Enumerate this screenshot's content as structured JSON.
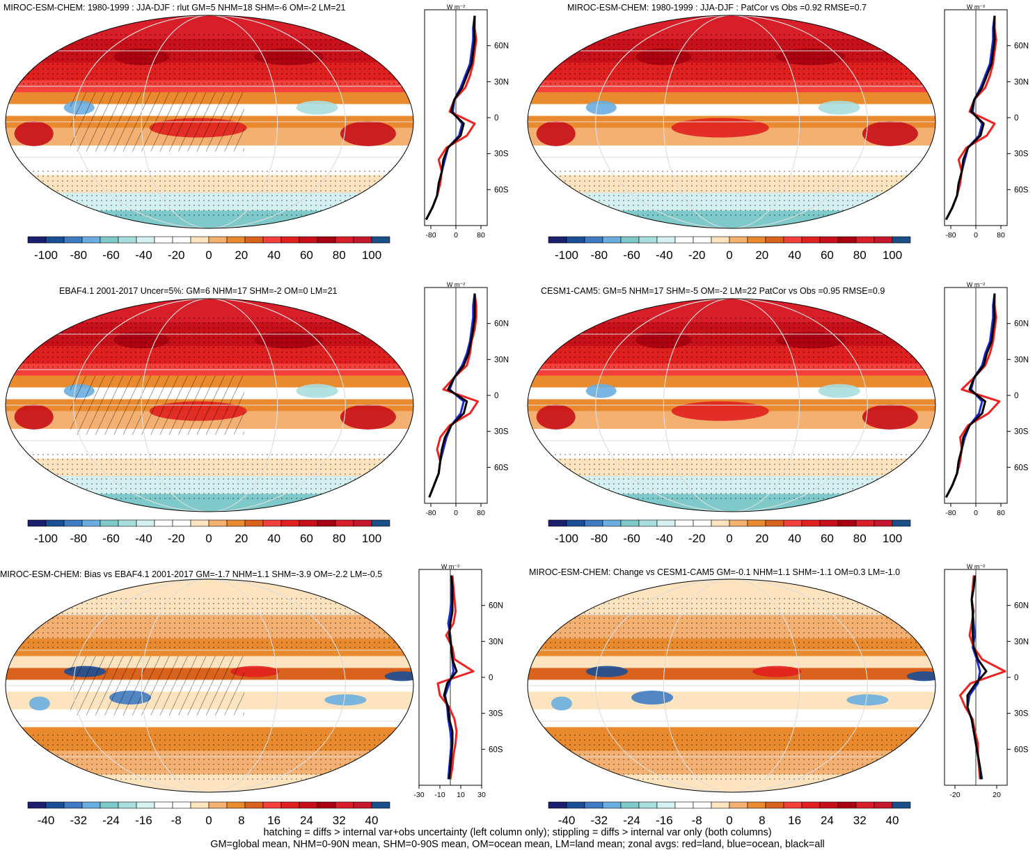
{
  "colors": {
    "rlut_scale": [
      "#1b1f6e",
      "#1c4e96",
      "#3f7cc4",
      "#6aaee0",
      "#7ec9c9",
      "#a9dede",
      "#d4f0f0",
      "#ffffff",
      "#ffffff",
      "#fde4bf",
      "#f4b070",
      "#ea8a2e",
      "#d9621c",
      "#f4403a",
      "#e0201e",
      "#c8101a",
      "#a80010",
      "#d81e28",
      "#c6182a",
      "#1a4f8a"
    ],
    "diff_scale": [
      "#1b1f6e",
      "#1c4e96",
      "#3f7cc4",
      "#6aaee0",
      "#7ec9c9",
      "#a9dede",
      "#d4f0f0",
      "#ffffff",
      "#ffffff",
      "#fde4bf",
      "#f4b070",
      "#ea8a2e",
      "#d9621c",
      "#f4403a",
      "#e0201e",
      "#c8101a",
      "#a80010",
      "#d81e28",
      "#c6182a",
      "#1a4f8a"
    ],
    "land": "#ee2222",
    "ocean": "#1a2bd6",
    "all": "#000000"
  },
  "panels": [
    {
      "id": "p1",
      "title": "MIROC-ESM-CHEM: 1980-1999 : JJA-DJF : rlut GM=5 NHM=18 SHM=-6 OM=-2 LM=21",
      "kind": "mean",
      "colorbar": [
        "-100",
        "-80",
        "-60",
        "-40",
        "-20",
        "0",
        "20",
        "40",
        "60",
        "80",
        "100"
      ],
      "zonal_xticks": [
        "-80",
        "0",
        "80"
      ],
      "hatched": true
    },
    {
      "id": "p2",
      "title": "MIROC-ESM-CHEM: 1980-1999 : JJA-DJF : PatCor vs Obs =0.92 RMSE=0.7",
      "kind": "mean",
      "colorbar": [
        "-100",
        "-80",
        "-60",
        "-40",
        "-20",
        "0",
        "20",
        "40",
        "60",
        "80",
        "100"
      ],
      "zonal_xticks": [
        "-80",
        "0",
        "80"
      ],
      "hatched": false
    },
    {
      "id": "p3",
      "title": "EBAF4.1 2001-2017 Uncer=5%: GM=6 NHM=17 SHM=-2 OM=0 LM=21",
      "kind": "mean",
      "colorbar": [
        "-100",
        "-80",
        "-60",
        "-40",
        "-20",
        "0",
        "20",
        "40",
        "60",
        "80",
        "100"
      ],
      "zonal_xticks": [
        "-80",
        "0",
        "80"
      ],
      "hatched": true
    },
    {
      "id": "p4",
      "title": "CESM1-CAM5: GM=5 NHM=17 SHM=-5 OM=-2 LM=22 PatCor vs Obs =0.95 RMSE=0.9",
      "kind": "mean",
      "colorbar": [
        "-100",
        "-80",
        "-60",
        "-40",
        "-20",
        "0",
        "20",
        "40",
        "60",
        "80",
        "100"
      ],
      "zonal_xticks": [
        "-80",
        "0",
        "80"
      ],
      "hatched": false
    },
    {
      "id": "p5",
      "title": "MIROC-ESM-CHEM: Bias vs EBAF4.1 2001-2017 GM=-1.7 NHM=1.1 SHM=-3.9 OM=-2.2 LM=-0.5",
      "kind": "diff",
      "colorbar": [
        "-40",
        "-32",
        "-24",
        "-16",
        "-8",
        "0",
        "8",
        "16",
        "24",
        "32",
        "40"
      ],
      "zonal_xticks": [
        "-30",
        "-10",
        "10",
        "30"
      ],
      "hatched": true
    },
    {
      "id": "p6",
      "title": "MIROC-ESM-CHEM: Change vs CESM1-CAM5 GM=-0.1 NHM=1.1 SHM=-1.1 OM=0.3 LM=-1.0",
      "kind": "diff",
      "colorbar": [
        "-40",
        "-32",
        "-24",
        "-16",
        "-8",
        "0",
        "8",
        "16",
        "24",
        "32",
        "40"
      ],
      "zonal_xticks": [
        "-20",
        "20"
      ],
      "hatched": false
    }
  ],
  "chart_data": {
    "type": "heatmap",
    "zonal_units": "W m⁻²",
    "lat_labels": [
      "60N",
      "30N",
      "0",
      "30S",
      "60S"
    ],
    "lat_values": [
      60,
      30,
      0,
      -30,
      -60
    ],
    "zonal_profiles": {
      "mean_ylim": [
        -90,
        90
      ],
      "mean_xlim": [
        -100,
        100
      ],
      "diff_xlim": [
        -30,
        30
      ],
      "lat": [
        -85,
        -75,
        -65,
        -55,
        -45,
        -35,
        -25,
        -15,
        -5,
        5,
        15,
        25,
        35,
        45,
        55,
        65,
        75,
        85
      ],
      "p1": {
        "land": [
          -95,
          -75,
          -60,
          -50,
          -45,
          -55,
          -30,
          35,
          60,
          -20,
          -5,
          30,
          45,
          55,
          60,
          65,
          60,
          60
        ],
        "ocean": [
          -95,
          -75,
          -60,
          -55,
          -45,
          -35,
          -25,
          10,
          20,
          -10,
          -5,
          15,
          30,
          45,
          50,
          55,
          55,
          60
        ],
        "all": [
          -95,
          -75,
          -60,
          -55,
          -45,
          -40,
          -25,
          15,
          25,
          -15,
          -5,
          20,
          35,
          50,
          55,
          60,
          58,
          60
        ]
      },
      "p2": {
        "land": [
          -95,
          -75,
          -60,
          -50,
          -45,
          -55,
          -30,
          35,
          60,
          -20,
          -5,
          30,
          45,
          55,
          60,
          65,
          60,
          60
        ],
        "ocean": [
          -95,
          -75,
          -60,
          -55,
          -45,
          -35,
          -25,
          10,
          20,
          -10,
          -5,
          15,
          30,
          45,
          50,
          55,
          55,
          60
        ],
        "all": [
          -95,
          -75,
          -60,
          -55,
          -45,
          -40,
          -25,
          15,
          25,
          -15,
          -5,
          20,
          35,
          50,
          55,
          60,
          58,
          60
        ]
      },
      "p3": {
        "land": [
          -85,
          -70,
          -55,
          -50,
          -60,
          -50,
          -20,
          45,
          70,
          -40,
          -5,
          35,
          45,
          50,
          60,
          65,
          65,
          60
        ],
        "ocean": [
          -85,
          -70,
          -55,
          -50,
          -40,
          -30,
          -15,
          15,
          25,
          -20,
          -5,
          20,
          35,
          45,
          50,
          55,
          55,
          60
        ],
        "all": [
          -85,
          -70,
          -55,
          -50,
          -45,
          -35,
          -15,
          25,
          35,
          -25,
          -5,
          25,
          40,
          48,
          55,
          60,
          60,
          60
        ]
      },
      "p4": {
        "land": [
          -95,
          -75,
          -60,
          -50,
          -45,
          -50,
          -25,
          40,
          75,
          -45,
          -5,
          30,
          45,
          55,
          60,
          65,
          60,
          60
        ],
        "ocean": [
          -95,
          -75,
          -60,
          -55,
          -45,
          -35,
          -20,
          10,
          20,
          -15,
          -5,
          20,
          30,
          45,
          50,
          55,
          55,
          60
        ],
        "all": [
          -95,
          -75,
          -60,
          -55,
          -45,
          -40,
          -20,
          20,
          30,
          -20,
          -5,
          25,
          35,
          50,
          55,
          60,
          58,
          60
        ]
      },
      "p5": {
        "land": [
          0,
          2,
          3,
          5,
          6,
          4,
          -1,
          -10,
          -12,
          22,
          4,
          2,
          -4,
          3,
          5,
          4,
          3,
          2
        ],
        "ocean": [
          -2,
          -1,
          0,
          1,
          0,
          -2,
          -3,
          -5,
          -1,
          3,
          2,
          1,
          0,
          -2,
          0,
          1,
          1,
          1
        ],
        "all": [
          -1,
          0,
          1,
          2,
          2,
          -1,
          -2,
          -6,
          -3,
          6,
          2,
          1,
          -1,
          0,
          2,
          2,
          2,
          1
        ]
      },
      "p6": {
        "land": [
          4,
          3,
          2,
          2,
          -1,
          -3,
          -10,
          -15,
          -5,
          28,
          6,
          -2,
          -6,
          -4,
          -2,
          -4,
          -3,
          -2
        ],
        "ocean": [
          6,
          4,
          2,
          0,
          -2,
          -4,
          -8,
          -6,
          2,
          4,
          1,
          -3,
          -1,
          -2,
          -3,
          -4,
          -2,
          -1
        ],
        "all": [
          5,
          4,
          2,
          0,
          -2,
          -4,
          -8,
          -8,
          0,
          10,
          2,
          -2,
          -3,
          -3,
          -3,
          -4,
          -2,
          -1
        ]
      }
    }
  },
  "footer": {
    "line1": "hatching = diffs > internal var+obs uncertainty (left column only); stippling = diffs > internal var only (both columns)",
    "line2": "GM=global mean, NHM=0-90N mean, SHM=0-90S mean, OM=ocean mean, LM=land mean; zonal avgs: red=land, blue=ocean, black=all"
  }
}
